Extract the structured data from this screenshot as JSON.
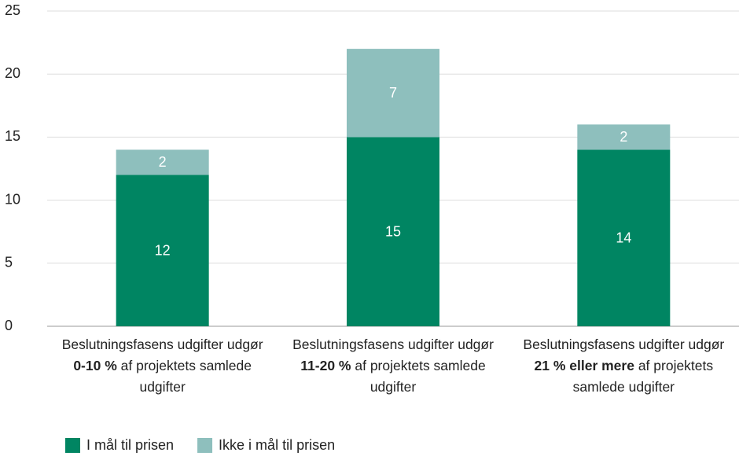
{
  "chart_data": {
    "type": "stacked_bar",
    "categories": [
      [
        "Beslutningsfasens udgifter udgør ",
        "0-10 %",
        " af projektets samlede udgifter"
      ],
      [
        "Beslutningsfasens udgifter udgør ",
        "11-20 %",
        " af projektets samlede udgifter"
      ],
      [
        "Beslutningsfasens udgifter udgør ",
        "21 % eller mere",
        " af projektets samlede udgifter"
      ]
    ],
    "series": [
      {
        "name": "I mål til prisen",
        "color": "#008562",
        "values": [
          12,
          15,
          14
        ]
      },
      {
        "name": "Ikke i mål til prisen",
        "color": "#8ebfbd",
        "values": [
          2,
          7,
          2
        ]
      }
    ],
    "ylim": [
      0,
      25
    ],
    "yticks": [
      0,
      5,
      10,
      15,
      20,
      25
    ],
    "grid": true,
    "legend": "bottom-left"
  }
}
